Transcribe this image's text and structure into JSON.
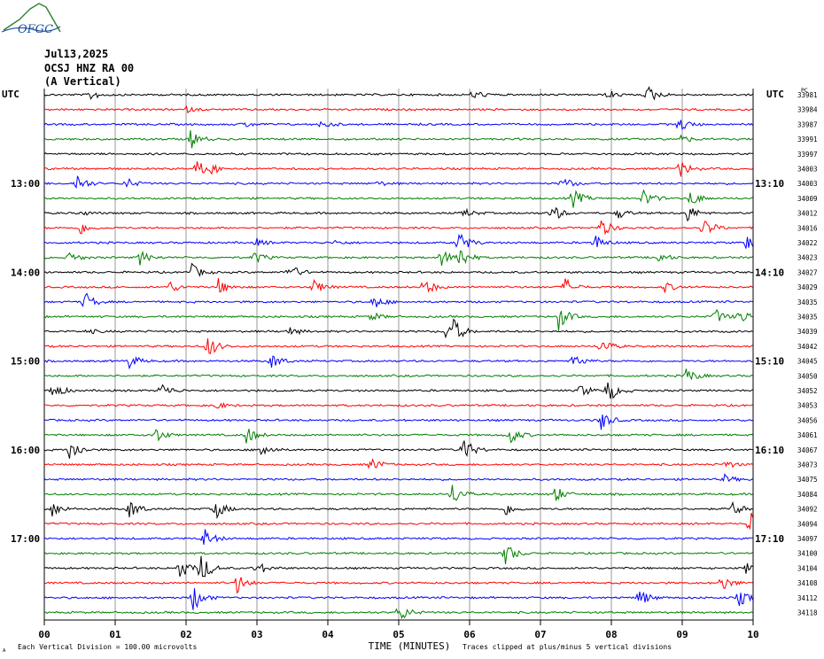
{
  "header": {
    "date": "Jul13,2025",
    "station": "OCSJ HNZ RA 00",
    "component": "(A Vertical)",
    "logo_text": "OFGC"
  },
  "axes": {
    "left_label": "UTC",
    "right_label": "UTC",
    "top_right_label": "PC",
    "left_times": [
      "13:00",
      "14:00",
      "15:00",
      "16:00",
      "17:00"
    ],
    "right_times": [
      "13:10",
      "14:10",
      "15:10",
      "16:10",
      "17:10"
    ],
    "x_ticks": [
      "00",
      "01",
      "02",
      "03",
      "04",
      "05",
      "06",
      "07",
      "08",
      "09",
      "10"
    ],
    "x_label": "TIME (MINUTES)"
  },
  "footer": {
    "left": "Each Vertical Division =  100.00 microvolts",
    "right": "Traces clipped at plus/minus 5 vertical divisions",
    "corner": "A"
  },
  "colors": {
    "black": "#000000",
    "red": "#ff0000",
    "blue": "#0000ff",
    "green": "#007f00",
    "grid": "#808080"
  },
  "chart_data": {
    "type": "line",
    "title": "OCSJ HNZ RA 00 (A Vertical) Jul13,2025",
    "xlabel": "TIME (MINUTES)",
    "xlim": [
      0,
      10
    ],
    "trace_colors": [
      "black",
      "red",
      "blue",
      "green"
    ],
    "row_labels": [
      "33981",
      "33984",
      "33987",
      "33991",
      "33997",
      "34003",
      "34003",
      "34009",
      "34012",
      "34016",
      "34022",
      "34023",
      "34027",
      "34029",
      "34035",
      "34035",
      "34039",
      "34042",
      "34045",
      "34050",
      "34052",
      "34053",
      "34056",
      "34061",
      "34067",
      "34073",
      "34075",
      "34084",
      "34092",
      "34094",
      "34097",
      "34100",
      "34104",
      "34108",
      "34112",
      "34118"
    ],
    "events": [
      [
        [
          0.65,
          6
        ],
        [
          6.05,
          6
        ],
        [
          8.5,
          12
        ],
        [
          7.95,
          5
        ]
      ],
      [
        [
          2.0,
          3
        ]
      ],
      [
        [
          2.8,
          4
        ],
        [
          3.9,
          5
        ],
        [
          8.95,
          9
        ]
      ],
      [
        [
          2.05,
          12
        ],
        [
          8.95,
          6
        ]
      ],
      [],
      [
        [
          2.15,
          10
        ],
        [
          2.35,
          5
        ],
        [
          8.95,
          12
        ]
      ],
      [
        [
          0.45,
          12
        ],
        [
          1.15,
          7
        ],
        [
          7.3,
          9
        ],
        [
          4.7,
          3
        ]
      ],
      [
        [
          7.45,
          12
        ],
        [
          8.45,
          11
        ],
        [
          9.1,
          11
        ]
      ],
      [
        [
          0.5,
          3
        ],
        [
          5.9,
          6
        ],
        [
          7.15,
          12
        ],
        [
          8.1,
          6
        ],
        [
          9.05,
          12
        ]
      ],
      [
        [
          0.5,
          8
        ],
        [
          7.85,
          12
        ],
        [
          9.3,
          12
        ]
      ],
      [
        [
          3.0,
          4
        ],
        [
          4.1,
          3
        ],
        [
          5.85,
          14
        ],
        [
          7.75,
          10
        ],
        [
          9.9,
          10
        ]
      ],
      [
        [
          0.35,
          7
        ],
        [
          1.35,
          8
        ],
        [
          2.95,
          8
        ],
        [
          5.6,
          10
        ],
        [
          5.85,
          14
        ],
        [
          8.65,
          7
        ]
      ],
      [
        [
          2.05,
          12
        ],
        [
          3.45,
          10
        ]
      ],
      [
        [
          1.75,
          8
        ],
        [
          2.45,
          10
        ],
        [
          3.8,
          9
        ],
        [
          5.35,
          12
        ],
        [
          7.35,
          10
        ],
        [
          8.75,
          6
        ]
      ],
      [
        [
          0.55,
          14
        ],
        [
          4.65,
          8
        ]
      ],
      [
        [
          4.6,
          6
        ],
        [
          7.25,
          16
        ],
        [
          9.45,
          10
        ],
        [
          9.8,
          10
        ]
      ],
      [
        [
          0.6,
          3
        ],
        [
          5.65,
          10
        ],
        [
          5.75,
          14
        ],
        [
          3.45,
          5
        ]
      ],
      [
        [
          2.3,
          14
        ],
        [
          7.85,
          10
        ]
      ],
      [
        [
          1.2,
          8
        ],
        [
          3.2,
          10
        ],
        [
          7.45,
          10
        ]
      ],
      [
        [
          9.05,
          10
        ]
      ],
      [
        [
          0.1,
          12
        ],
        [
          1.65,
          9
        ],
        [
          7.55,
          9
        ],
        [
          7.95,
          14
        ]
      ],
      [
        [
          2.4,
          5
        ]
      ],
      [
        [
          7.85,
          12
        ]
      ],
      [
        [
          1.55,
          10
        ],
        [
          2.85,
          10
        ],
        [
          6.55,
          12
        ]
      ],
      [
        [
          0.35,
          16
        ],
        [
          3.05,
          9
        ],
        [
          5.9,
          16
        ]
      ],
      [
        [
          4.6,
          9
        ],
        [
          9.6,
          5
        ]
      ],
      [
        [
          9.6,
          5
        ]
      ],
      [
        [
          5.75,
          14
        ],
        [
          7.2,
          10
        ]
      ],
      [
        [
          0.1,
          10
        ],
        [
          1.2,
          12
        ],
        [
          2.4,
          13
        ],
        [
          6.5,
          8
        ],
        [
          9.7,
          10
        ]
      ],
      [
        [
          9.95,
          16
        ]
      ],
      [
        [
          2.25,
          12
        ]
      ],
      [
        [
          6.5,
          14
        ]
      ],
      [
        [
          1.9,
          14
        ],
        [
          2.2,
          20
        ],
        [
          3.0,
          8
        ],
        [
          9.9,
          6
        ]
      ],
      [
        [
          2.7,
          14
        ],
        [
          9.55,
          10
        ]
      ],
      [
        [
          2.1,
          16
        ],
        [
          8.4,
          10
        ],
        [
          9.8,
          10
        ]
      ],
      [
        [
          5.0,
          12
        ]
      ]
    ]
  }
}
